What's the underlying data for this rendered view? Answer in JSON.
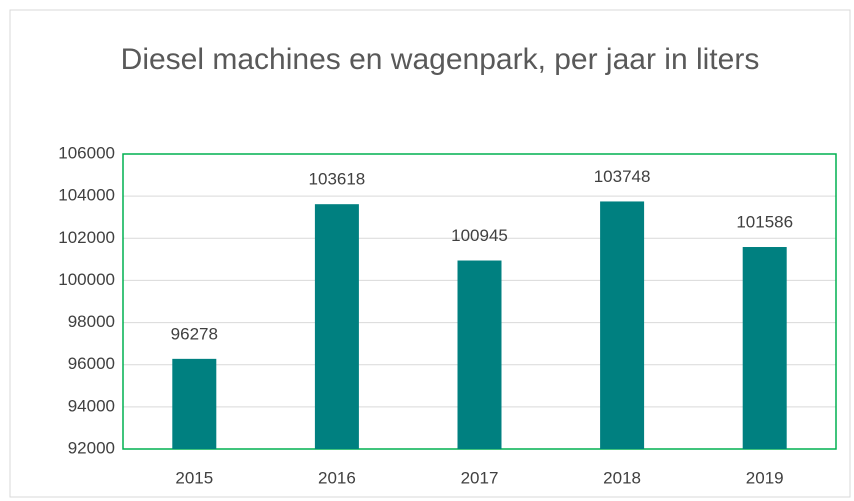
{
  "chart_data": {
    "type": "bar",
    "title": "Diesel machines en wagenpark, per jaar in liters",
    "categories": [
      "2015",
      "2016",
      "2017",
      "2018",
      "2019"
    ],
    "values": [
      96278,
      103618,
      100945,
      103748,
      101586
    ],
    "color": "#008080",
    "ylim": [
      92000,
      106000
    ],
    "yticks": [
      92000,
      94000,
      96000,
      98000,
      100000,
      102000,
      104000,
      106000
    ],
    "grid": true
  }
}
